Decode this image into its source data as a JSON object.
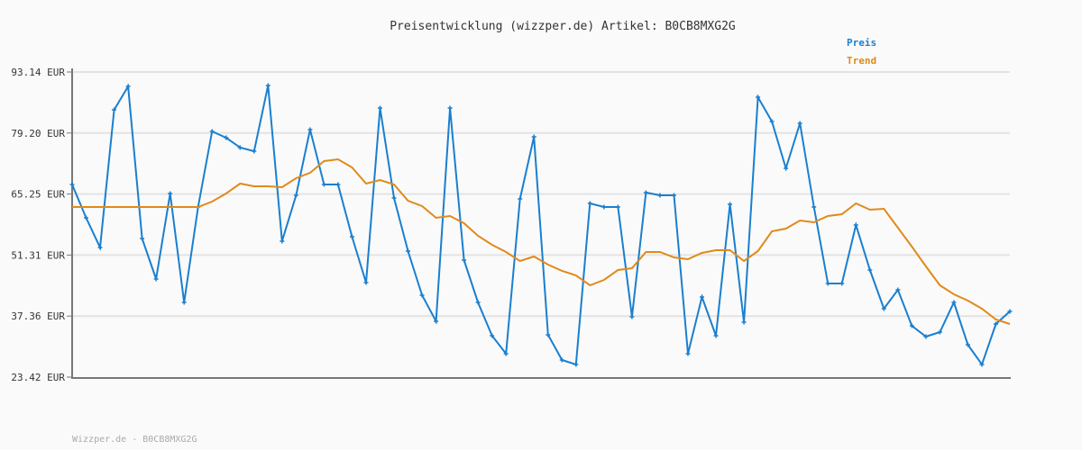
{
  "chart_data": {
    "type": "line",
    "title": "Preisentwicklung (wizzper.de) Artikel: B0CB8MXG2G",
    "xlabel": "",
    "ylabel": "",
    "ylim": [
      23.42,
      93.14
    ],
    "yticks": [
      "93.14 EUR",
      "79.20 EUR",
      "65.25 EUR",
      "51.31 EUR",
      "37.36 EUR",
      "23.42 EUR"
    ],
    "ytick_values": [
      93.14,
      79.2,
      65.25,
      51.31,
      37.36,
      23.42
    ],
    "grid": "horizontal",
    "legend_position": "top-right",
    "series": [
      {
        "name": "Preis",
        "color": "#1a7fcf",
        "markers": true,
        "values": [
          67.43,
          59.82,
          53.03,
          84.5,
          89.85,
          55.09,
          45.83,
          65.37,
          40.49,
          62.29,
          79.57,
          78.13,
          75.86,
          75.04,
          90.05,
          54.47,
          64.96,
          79.98,
          67.43,
          67.43,
          55.5,
          45.01,
          84.91,
          64.35,
          52.21,
          42.13,
          36.17,
          84.91,
          50.15,
          40.49,
          32.88,
          28.76,
          64.14,
          78.33,
          33.08,
          27.32,
          26.3,
          63.11,
          62.29,
          62.29,
          37.2,
          65.58,
          64.96,
          64.96,
          28.76,
          41.72,
          32.88,
          62.91,
          35.96,
          87.38,
          81.83,
          71.13,
          81.42,
          62.29,
          44.81,
          44.81,
          58.18,
          47.89,
          39.05,
          43.37,
          35.14,
          32.67,
          33.7,
          40.49,
          30.82,
          26.3,
          35.55,
          38.43
        ]
      },
      {
        "name": "Trend",
        "color": "#e08a1a",
        "markers": false,
        "values": [
          62.29,
          62.29,
          62.29,
          62.29,
          62.29,
          62.29,
          62.29,
          62.29,
          62.29,
          62.29,
          63.52,
          65.37,
          67.64,
          67.02,
          67.02,
          66.81,
          68.87,
          70.1,
          72.78,
          73.19,
          71.34,
          67.64,
          68.46,
          67.43,
          63.73,
          62.49,
          59.82,
          60.23,
          58.59,
          55.71,
          53.65,
          52.01,
          49.95,
          50.98,
          49.13,
          47.68,
          46.66,
          44.4,
          45.63,
          47.89,
          48.3,
          52.01,
          52.01,
          50.77,
          50.36,
          51.8,
          52.42,
          52.42,
          49.95,
          52.21,
          56.74,
          57.35,
          59.2,
          58.79,
          60.23,
          60.64,
          63.11,
          61.67,
          61.88,
          57.56,
          53.24,
          48.71,
          44.4,
          42.34,
          40.9,
          39.05,
          36.58,
          35.55
        ]
      }
    ]
  },
  "footer": "Wizzper.de - B0CB8MXG2G"
}
